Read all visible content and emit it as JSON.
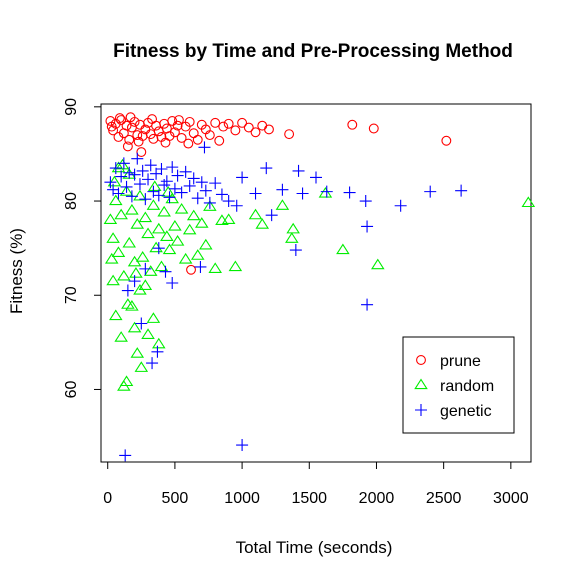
{
  "chart_data": {
    "type": "scatter",
    "title": "Fitness by Time and Pre-Processing Method",
    "xlabel": "Total Time (seconds)",
    "ylabel": "Fitness (%)",
    "xlim": [
      -50,
      3150
    ],
    "ylim": [
      52.3,
      90.3
    ],
    "xticks": [
      0,
      500,
      1000,
      1500,
      2000,
      2500,
      3000
    ],
    "yticks": [
      60,
      70,
      80,
      90
    ],
    "grid": false,
    "legend_position": "bottom-right",
    "series": [
      {
        "name": "prune",
        "color": "#ff0000",
        "marker": "circle",
        "points": [
          [
            20,
            88.5
          ],
          [
            40,
            87.5
          ],
          [
            60,
            88.2
          ],
          [
            80,
            86.8
          ],
          [
            100,
            88.6
          ],
          [
            120,
            87.2
          ],
          [
            140,
            88.0
          ],
          [
            160,
            86.5
          ],
          [
            180,
            87.8
          ],
          [
            200,
            88.4
          ],
          [
            220,
            87.0
          ],
          [
            240,
            88.1
          ],
          [
            260,
            86.9
          ],
          [
            280,
            87.6
          ],
          [
            300,
            88.3
          ],
          [
            320,
            87.1
          ],
          [
            340,
            86.6
          ],
          [
            360,
            88.0
          ],
          [
            380,
            87.4
          ],
          [
            400,
            86.8
          ],
          [
            420,
            88.2
          ],
          [
            440,
            87.7
          ],
          [
            460,
            86.9
          ],
          [
            480,
            88.5
          ],
          [
            500,
            87.3
          ],
          [
            520,
            88.0
          ],
          [
            550,
            86.7
          ],
          [
            580,
            87.9
          ],
          [
            610,
            88.4
          ],
          [
            640,
            87.2
          ],
          [
            670,
            86.5
          ],
          [
            700,
            88.1
          ],
          [
            730,
            87.6
          ],
          [
            760,
            87.0
          ],
          [
            800,
            88.3
          ],
          [
            830,
            86.4
          ],
          [
            860,
            87.9
          ],
          [
            900,
            88.2
          ],
          [
            950,
            87.5
          ],
          [
            1000,
            88.3
          ],
          [
            1050,
            87.8
          ],
          [
            1100,
            87.3
          ],
          [
            1150,
            88.0
          ],
          [
            1200,
            87.6
          ],
          [
            1350,
            87.1
          ],
          [
            1820,
            88.1
          ],
          [
            1980,
            87.7
          ],
          [
            2520,
            86.4
          ],
          [
            620,
            72.7
          ],
          [
            150,
            85.8
          ],
          [
            250,
            85.2
          ],
          [
            30,
            87.9
          ],
          [
            90,
            88.8
          ],
          [
            170,
            88.9
          ],
          [
            230,
            86.3
          ],
          [
            330,
            88.7
          ],
          [
            430,
            86.2
          ],
          [
            530,
            88.6
          ],
          [
            600,
            86.1
          ]
        ]
      },
      {
        "name": "random",
        "color": "#00ee00",
        "marker": "triangle",
        "points": [
          [
            20,
            78.0
          ],
          [
            40,
            76.0
          ],
          [
            60,
            80.0
          ],
          [
            80,
            74.5
          ],
          [
            100,
            78.5
          ],
          [
            120,
            72.0
          ],
          [
            140,
            81.0
          ],
          [
            160,
            75.5
          ],
          [
            180,
            79.0
          ],
          [
            200,
            73.5
          ],
          [
            220,
            77.5
          ],
          [
            240,
            80.5
          ],
          [
            260,
            74.0
          ],
          [
            280,
            78.2
          ],
          [
            300,
            76.5
          ],
          [
            320,
            72.5
          ],
          [
            340,
            79.5
          ],
          [
            360,
            75.0
          ],
          [
            380,
            77.0
          ],
          [
            400,
            73.0
          ],
          [
            420,
            78.8
          ],
          [
            440,
            76.2
          ],
          [
            460,
            74.8
          ],
          [
            480,
            80.2
          ],
          [
            500,
            77.3
          ],
          [
            520,
            75.7
          ],
          [
            550,
            79.1
          ],
          [
            580,
            73.8
          ],
          [
            610,
            76.9
          ],
          [
            640,
            78.4
          ],
          [
            670,
            74.2
          ],
          [
            700,
            77.6
          ],
          [
            730,
            75.3
          ],
          [
            760,
            79.4
          ],
          [
            800,
            72.8
          ],
          [
            850,
            77.9
          ],
          [
            900,
            78.0
          ],
          [
            950,
            73.0
          ],
          [
            1100,
            78.5
          ],
          [
            1150,
            77.5
          ],
          [
            1300,
            79.5
          ],
          [
            1370,
            76.0
          ],
          [
            1380,
            77.0
          ],
          [
            1620,
            80.8
          ],
          [
            1750,
            74.8
          ],
          [
            2010,
            73.2
          ],
          [
            3130,
            79.8
          ],
          [
            100,
            65.5
          ],
          [
            120,
            60.3
          ],
          [
            140,
            60.8
          ],
          [
            60,
            67.8
          ],
          [
            200,
            66.5
          ],
          [
            220,
            63.8
          ],
          [
            250,
            62.3
          ],
          [
            180,
            68.8
          ],
          [
            300,
            65.8
          ],
          [
            380,
            64.8
          ],
          [
            340,
            67.5
          ],
          [
            280,
            71.0
          ],
          [
            240,
            70.5
          ],
          [
            150,
            69.0
          ],
          [
            210,
            72.3
          ],
          [
            40,
            71.5
          ],
          [
            30,
            73.8
          ],
          [
            80,
            83.5
          ],
          [
            160,
            82.8
          ],
          [
            110,
            83.8
          ],
          [
            50,
            82.0
          ],
          [
            350,
            81.5
          ],
          [
            450,
            80.9
          ]
        ]
      },
      {
        "name": "genetic",
        "color": "#0000ff",
        "marker": "plus",
        "points": [
          [
            20,
            82.0
          ],
          [
            40,
            81.2
          ],
          [
            60,
            83.5
          ],
          [
            80,
            80.8
          ],
          [
            100,
            82.6
          ],
          [
            120,
            84.0
          ],
          [
            140,
            81.5
          ],
          [
            160,
            83.0
          ],
          [
            180,
            80.5
          ],
          [
            200,
            82.8
          ],
          [
            220,
            84.5
          ],
          [
            240,
            81.8
          ],
          [
            260,
            83.2
          ],
          [
            280,
            80.2
          ],
          [
            300,
            82.3
          ],
          [
            320,
            83.8
          ],
          [
            340,
            81.0
          ],
          [
            360,
            82.9
          ],
          [
            380,
            80.6
          ],
          [
            400,
            83.4
          ],
          [
            420,
            81.7
          ],
          [
            440,
            82.1
          ],
          [
            460,
            80.4
          ],
          [
            480,
            83.6
          ],
          [
            500,
            81.3
          ],
          [
            520,
            82.7
          ],
          [
            550,
            80.9
          ],
          [
            580,
            83.1
          ],
          [
            610,
            81.6
          ],
          [
            640,
            82.4
          ],
          [
            670,
            80.3
          ],
          [
            700,
            82.0
          ],
          [
            730,
            81.1
          ],
          [
            760,
            79.8
          ],
          [
            800,
            81.9
          ],
          [
            850,
            80.7
          ],
          [
            900,
            80.0
          ],
          [
            960,
            79.5
          ],
          [
            1000,
            82.5
          ],
          [
            1100,
            80.8
          ],
          [
            1180,
            83.5
          ],
          [
            1220,
            78.5
          ],
          [
            1300,
            81.2
          ],
          [
            1400,
            74.8
          ],
          [
            1420,
            83.2
          ],
          [
            1450,
            80.8
          ],
          [
            1550,
            82.5
          ],
          [
            1630,
            81.0
          ],
          [
            1800,
            80.9
          ],
          [
            1920,
            80.0
          ],
          [
            1930,
            77.3
          ],
          [
            1930,
            69.0
          ],
          [
            2180,
            79.5
          ],
          [
            2400,
            81.0
          ],
          [
            2630,
            81.1
          ],
          [
            720,
            85.7
          ],
          [
            250,
            67.0
          ],
          [
            370,
            64.0
          ],
          [
            330,
            62.8
          ],
          [
            380,
            75.0
          ],
          [
            430,
            72.5
          ],
          [
            480,
            71.3
          ],
          [
            200,
            71.5
          ],
          [
            150,
            70.5
          ],
          [
            280,
            72.8
          ],
          [
            690,
            73.0
          ],
          [
            130,
            53.0
          ],
          [
            1000,
            54.1
          ]
        ]
      }
    ]
  }
}
